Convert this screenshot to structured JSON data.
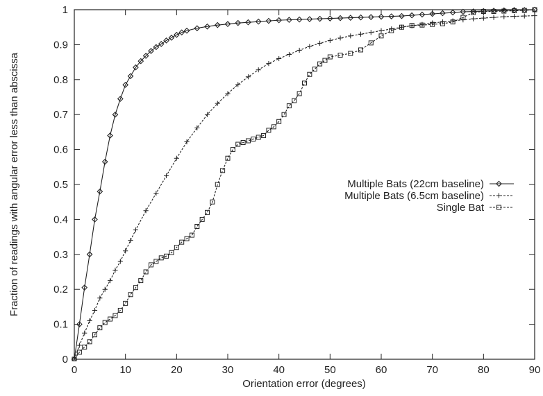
{
  "chart_data": {
    "type": "line",
    "xlabel": "Orientation error (degrees)",
    "ylabel": "Fraction of readings with angular error less than abscissa",
    "xlim": [
      0,
      90
    ],
    "ylim": [
      0,
      1
    ],
    "x_ticks": [
      0,
      10,
      20,
      30,
      40,
      50,
      60,
      70,
      80,
      90
    ],
    "y_ticks": [
      0,
      0.1,
      0.2,
      0.3,
      0.4,
      0.5,
      0.6,
      0.7,
      0.8,
      0.9,
      1
    ],
    "x_tick_labels": [
      "0",
      "10",
      "20",
      "30",
      "40",
      "50",
      "60",
      "70",
      "80",
      "90"
    ],
    "y_tick_labels": [
      "0",
      "0.1",
      "0.2",
      "0.3",
      "0.4",
      "0.5",
      "0.6",
      "0.7",
      "0.8",
      "0.9",
      "1"
    ],
    "grid": false,
    "legend_position": "center-right",
    "series": [
      {
        "name": "Multiple Bats (22cm baseline)",
        "marker": "diamond",
        "line_style": "solid",
        "color": "#222222",
        "x": [
          0,
          1,
          2,
          3,
          4,
          5,
          6,
          7,
          8,
          9,
          10,
          11,
          12,
          13,
          14,
          15,
          16,
          17,
          18,
          19,
          20,
          21,
          22,
          24,
          26,
          28,
          30,
          32,
          34,
          36,
          38,
          40,
          42,
          44,
          46,
          48,
          50,
          52,
          54,
          56,
          58,
          60,
          62,
          64,
          66,
          68,
          70,
          72,
          74,
          76,
          78,
          80,
          82,
          84,
          86,
          88,
          90
        ],
        "y": [
          0,
          0.1,
          0.205,
          0.3,
          0.4,
          0.48,
          0.565,
          0.64,
          0.7,
          0.745,
          0.785,
          0.81,
          0.835,
          0.853,
          0.868,
          0.882,
          0.893,
          0.902,
          0.912,
          0.92,
          0.928,
          0.935,
          0.94,
          0.947,
          0.952,
          0.956,
          0.959,
          0.962,
          0.964,
          0.966,
          0.968,
          0.97,
          0.971,
          0.972,
          0.973,
          0.974,
          0.975,
          0.976,
          0.977,
          0.978,
          0.979,
          0.98,
          0.981,
          0.982,
          0.984,
          0.986,
          0.988,
          0.99,
          0.992,
          0.994,
          0.995,
          0.996,
          0.997,
          0.998,
          0.999,
          0.999,
          1.0
        ]
      },
      {
        "name": "Multiple Bats (6.5cm baseline)",
        "marker": "plus",
        "line_style": "dashed",
        "color": "#222222",
        "x": [
          0,
          1,
          2,
          3,
          4,
          5,
          6,
          7,
          8,
          9,
          10,
          11,
          12,
          14,
          16,
          18,
          20,
          22,
          24,
          26,
          28,
          30,
          32,
          34,
          36,
          38,
          40,
          42,
          44,
          46,
          48,
          50,
          52,
          54,
          56,
          58,
          60,
          62,
          64,
          66,
          68,
          70,
          72,
          74,
          76,
          78,
          80,
          82,
          84,
          86,
          88,
          90
        ],
        "y": [
          0,
          0.04,
          0.075,
          0.11,
          0.14,
          0.175,
          0.2,
          0.225,
          0.255,
          0.28,
          0.31,
          0.34,
          0.37,
          0.425,
          0.475,
          0.525,
          0.575,
          0.622,
          0.662,
          0.7,
          0.732,
          0.76,
          0.786,
          0.808,
          0.828,
          0.846,
          0.86,
          0.872,
          0.884,
          0.895,
          0.904,
          0.912,
          0.919,
          0.925,
          0.93,
          0.935,
          0.94,
          0.945,
          0.95,
          0.954,
          0.958,
          0.962,
          0.965,
          0.968,
          0.971,
          0.974,
          0.976,
          0.978,
          0.98,
          0.981,
          0.982,
          0.983
        ]
      },
      {
        "name": "Single Bat",
        "marker": "square",
        "line_style": "dashed",
        "color": "#222222",
        "x": [
          0,
          1,
          2,
          3,
          4,
          5,
          6,
          7,
          8,
          9,
          10,
          11,
          12,
          13,
          14,
          15,
          16,
          17,
          18,
          19,
          20,
          21,
          22,
          23,
          24,
          25,
          26,
          27,
          28,
          29,
          30,
          31,
          32,
          33,
          34,
          35,
          36,
          37,
          38,
          39,
          40,
          41,
          42,
          43,
          44,
          45,
          46,
          47,
          48,
          49,
          50,
          52,
          54,
          56,
          58,
          60,
          62,
          64,
          66,
          68,
          70,
          72,
          74,
          76,
          78,
          80,
          82,
          84,
          86,
          88,
          90
        ],
        "y": [
          0,
          0.02,
          0.035,
          0.05,
          0.07,
          0.09,
          0.105,
          0.115,
          0.125,
          0.14,
          0.16,
          0.185,
          0.205,
          0.225,
          0.25,
          0.27,
          0.28,
          0.29,
          0.295,
          0.305,
          0.32,
          0.335,
          0.345,
          0.355,
          0.38,
          0.4,
          0.42,
          0.45,
          0.5,
          0.54,
          0.575,
          0.6,
          0.615,
          0.62,
          0.625,
          0.63,
          0.635,
          0.64,
          0.655,
          0.665,
          0.68,
          0.7,
          0.725,
          0.74,
          0.76,
          0.79,
          0.815,
          0.83,
          0.845,
          0.855,
          0.865,
          0.87,
          0.875,
          0.885,
          0.905,
          0.925,
          0.94,
          0.95,
          0.955,
          0.956,
          0.958,
          0.96,
          0.965,
          0.978,
          0.992,
          0.995,
          0.995,
          0.996,
          0.997,
          0.998,
          1.0
        ]
      }
    ]
  }
}
